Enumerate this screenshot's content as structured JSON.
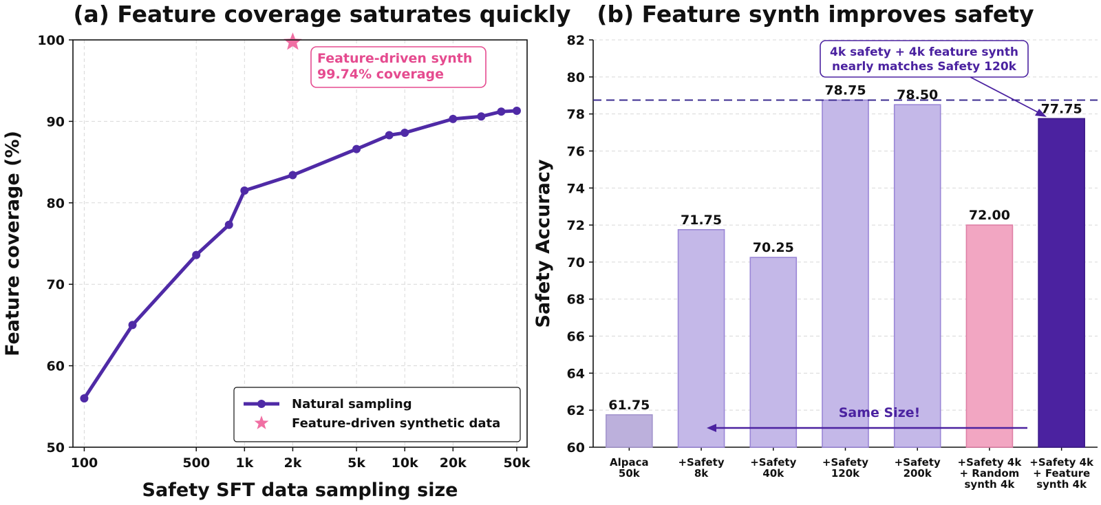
{
  "chart_data": [
    {
      "type": "line",
      "title": "(a) Feature coverage saturates quickly",
      "xlabel": "Safety SFT data sampling size",
      "ylabel": "Feature coverage (%)",
      "xscale": "log",
      "xlim": [
        85,
        58000
      ],
      "ylim": [
        50,
        100
      ],
      "xticks": [
        100,
        500,
        1000,
        2000,
        5000,
        10000,
        20000,
        50000
      ],
      "xtick_labels": [
        "100",
        "500",
        "1k",
        "2k",
        "5k",
        "10k",
        "20k",
        "50k"
      ],
      "yticks": [
        50,
        60,
        70,
        80,
        90,
        100
      ],
      "grid": true,
      "legend_placement": "lower-right",
      "series": [
        {
          "name": "Natural sampling",
          "color": "#4f2aa6",
          "x": [
            100,
            200,
            500,
            800,
            1000,
            2000,
            5000,
            8000,
            10000,
            20000,
            30000,
            40000,
            50000
          ],
          "y": [
            56.0,
            65.0,
            73.6,
            77.3,
            81.5,
            83.4,
            86.6,
            88.3,
            88.6,
            90.3,
            90.6,
            91.2,
            91.3
          ]
        },
        {
          "name": "Feature-driven synthetic data",
          "color": "#f06fa3",
          "marker": "star",
          "x": [
            2000
          ],
          "y": [
            99.74
          ]
        }
      ],
      "annotations": [
        {
          "line1": "Feature-driven synth",
          "line2": "99.74% coverage",
          "color": "#e54b8f"
        }
      ]
    },
    {
      "type": "bar",
      "title": "(b) Feature synth improves safety",
      "xlabel": "",
      "ylabel": "Safety Accuracy",
      "ylim": [
        60,
        82
      ],
      "yticks": [
        60,
        62,
        64,
        66,
        68,
        70,
        72,
        74,
        76,
        78,
        80,
        82
      ],
      "grid": true,
      "categories": [
        [
          "Alpaca",
          "50k"
        ],
        [
          "+Safety",
          "8k"
        ],
        [
          "+Safety",
          "40k"
        ],
        [
          "+Safety",
          "120k"
        ],
        [
          "+Safety",
          "200k"
        ],
        [
          "+Safety 4k",
          "+ Random",
          "synth 4k"
        ],
        [
          "+Safety 4k",
          "+ Feature",
          "synth 4k"
        ]
      ],
      "values": [
        61.75,
        71.75,
        70.25,
        78.75,
        78.5,
        72.0,
        77.75
      ],
      "value_labels": [
        "61.75",
        "71.75",
        "70.25",
        "78.75",
        "78.50",
        "72.00",
        "77.75"
      ],
      "bar_colors": [
        "#bcb0dc",
        "#c4b8e8",
        "#c4b8e8",
        "#c4b8e8",
        "#c4b8e8",
        "#f2a6c2",
        "#4b22a0"
      ],
      "bar_edge_colors": [
        "#a395cc",
        "#9a86d6",
        "#9a86d6",
        "#9a86d6",
        "#9a86d6",
        "#de7fa5",
        "#3a1888"
      ],
      "reference_line": {
        "y": 78.75,
        "color": "#3a2a8f",
        "style": "dashed"
      },
      "annotations": [
        {
          "line1": "4k safety + 4k feature synth",
          "line2": "nearly matches Safety 120k",
          "color": "#4b22a0"
        },
        {
          "text": "Same Size!",
          "color": "#4b22a0"
        }
      ]
    }
  ]
}
